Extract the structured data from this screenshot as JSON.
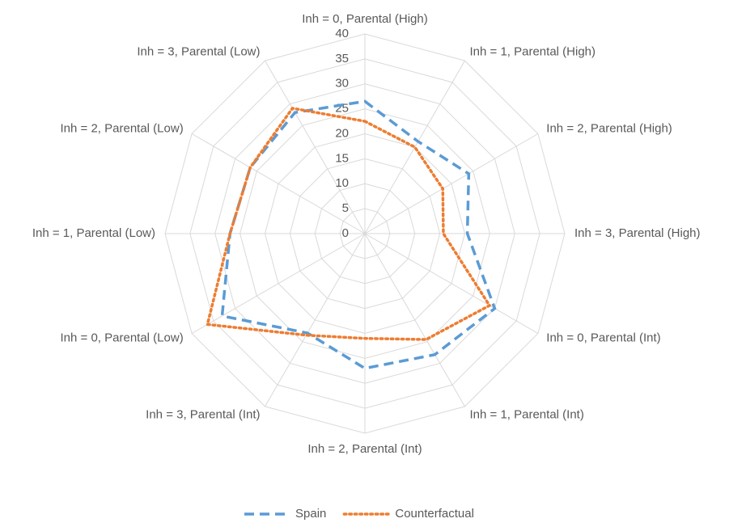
{
  "chart_data": {
    "type": "radar",
    "categories": [
      "Inh = 0, Parental (High)",
      "Inh = 1, Parental (High)",
      "Inh = 2, Parental (High)",
      "Inh = 3, Parental (High)",
      "Inh = 0, Parental (Int)",
      "Inh = 1, Parental (Int)",
      "Inh = 2, Parental (Int)",
      "Inh = 3, Parental (Int)",
      "Inh = 0, Parental (Low)",
      "Inh = 1, Parental (Low)",
      "Inh = 2, Parental (Low)",
      "Inh = 3, Parental (Low)"
    ],
    "series": [
      {
        "name": "Spain",
        "color": "#5b9bd5",
        "values": [
          26.5,
          21.3,
          24,
          20.5,
          30,
          28,
          27,
          23,
          33,
          27,
          26.5,
          28
        ]
      },
      {
        "name": "Counterfactual",
        "color": "#ed7d31",
        "values": [
          22.5,
          20,
          18,
          15.7,
          28.8,
          24.5,
          21,
          23.5,
          36.4,
          27,
          26.5,
          29
        ]
      }
    ],
    "ylim": [
      0,
      40
    ],
    "yticks": [
      0,
      5,
      10,
      15,
      20,
      25,
      30,
      35,
      40
    ],
    "grid": true,
    "legend": "bottom"
  }
}
